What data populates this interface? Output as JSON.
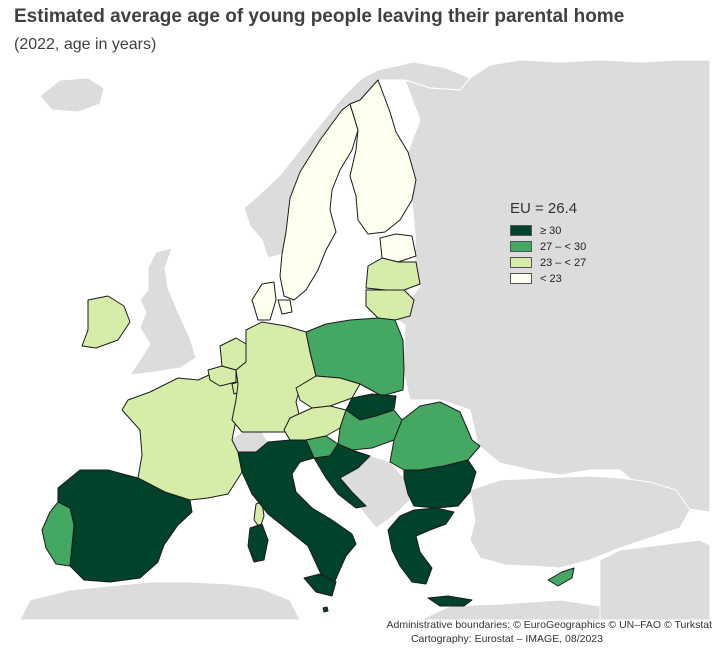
{
  "title": "Estimated average age of young people leaving their parental home",
  "subtitle": "(2022, age in years)",
  "legend": {
    "title": "EU = 26.4",
    "items": [
      {
        "label": "≥ 30",
        "color": "#00432a"
      },
      {
        "label": "27 – < 30",
        "color": "#45a862"
      },
      {
        "label": "23 – < 27",
        "color": "#d6edaa"
      },
      {
        "label": "< 23",
        "color": "#fffff0"
      }
    ]
  },
  "colors": {
    "sea": "#ffffff",
    "non_eu_land": "#dcdcdc",
    "no_data": "#dcdcdc",
    "border": "#1a1a1a"
  },
  "credits": {
    "line1": "Administrative boundaries: © EuroGeographics © UN–FAO © Turkstat",
    "line2": "Cartography: Eurostat – IMAGE, 08/2023"
  },
  "countries": [
    {
      "name": "Spain",
      "class": "≥ 30"
    },
    {
      "name": "Portugal",
      "class": "27 – < 30"
    },
    {
      "name": "France",
      "class": "23 – < 27"
    },
    {
      "name": "Ireland",
      "class": "23 – < 27"
    },
    {
      "name": "Belgium",
      "class": "23 – < 27"
    },
    {
      "name": "Netherlands",
      "class": "23 – < 27"
    },
    {
      "name": "Luxembourg",
      "class": "23 – < 27"
    },
    {
      "name": "Germany",
      "class": "23 – < 27"
    },
    {
      "name": "Denmark",
      "class": "< 23"
    },
    {
      "name": "Sweden",
      "class": "< 23"
    },
    {
      "name": "Finland",
      "class": "< 23"
    },
    {
      "name": "Estonia",
      "class": "< 23"
    },
    {
      "name": "Latvia",
      "class": "23 – < 27"
    },
    {
      "name": "Lithuania",
      "class": "23 – < 27"
    },
    {
      "name": "Poland",
      "class": "27 – < 30"
    },
    {
      "name": "Czechia",
      "class": "23 – < 27"
    },
    {
      "name": "Austria",
      "class": "23 – < 27"
    },
    {
      "name": "Slovakia",
      "class": "≥ 30"
    },
    {
      "name": "Hungary",
      "class": "27 – < 30"
    },
    {
      "name": "Slovenia",
      "class": "27 – < 30"
    },
    {
      "name": "Croatia",
      "class": "≥ 30"
    },
    {
      "name": "Romania",
      "class": "27 – < 30"
    },
    {
      "name": "Bulgaria",
      "class": "≥ 30"
    },
    {
      "name": "Greece",
      "class": "≥ 30"
    },
    {
      "name": "Italy",
      "class": "≥ 30"
    },
    {
      "name": "Malta",
      "class": "≥ 30"
    },
    {
      "name": "Cyprus",
      "class": "27 – < 30"
    }
  ]
}
